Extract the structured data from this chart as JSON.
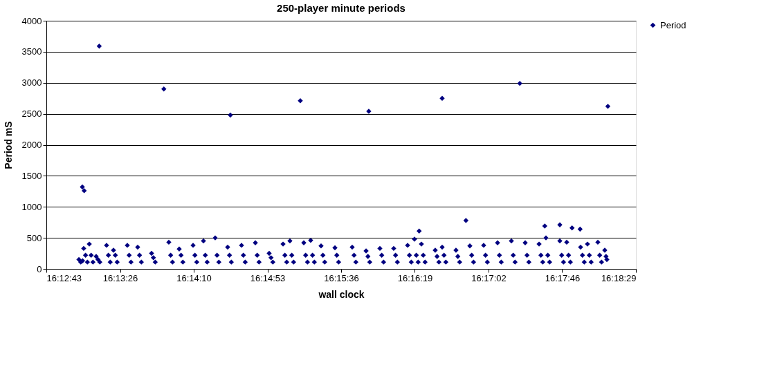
{
  "chart_data": {
    "type": "scatter",
    "title": "250-player minute periods",
    "xlabel": "wall clock",
    "ylabel": "Period mS",
    "xlim": [
      16.212,
      16.308
    ],
    "xticks": [
      {
        "value": 16.212,
        "label": "16:12:43"
      },
      {
        "value": 16.224,
        "label": "16:13:26"
      },
      {
        "value": 16.236,
        "label": "16:14:10"
      },
      {
        "value": 16.248,
        "label": "16:14:53"
      },
      {
        "value": 16.26,
        "label": "16:15:36"
      },
      {
        "value": 16.272,
        "label": "16:16:19"
      },
      {
        "value": 16.284,
        "label": "16:17:02"
      },
      {
        "value": 16.296,
        "label": "16:17:46"
      },
      {
        "value": 16.308,
        "label": "16:18:29"
      }
    ],
    "ylim": [
      0,
      4000
    ],
    "yticks": [
      0,
      500,
      1000,
      1500,
      2000,
      2500,
      3000,
      3500,
      4000
    ],
    "grid": "y",
    "legend": "right",
    "marker": "diamond",
    "x": [
      16.21786,
      16.21816,
      16.22061,
      16.23113,
      16.24196,
      16.25335,
      16.2645,
      16.27645,
      16.28909,
      16.30343,
      16.28032,
      16.29316,
      16.29561,
      16.2976,
      16.29891,
      16.2727,
      16.2173,
      16.2176,
      16.2179,
      16.21808,
      16.21838,
      16.21868,
      16.21899,
      16.21929,
      16.21959,
      16.22011,
      16.22041,
      16.22071,
      16.2218,
      16.2221,
      16.2224,
      16.22293,
      16.22323,
      16.22353,
      16.22518,
      16.22548,
      16.22578,
      16.22687,
      16.22717,
      16.22747,
      16.22913,
      16.22943,
      16.22973,
      16.23194,
      16.23224,
      16.23254,
      16.23363,
      16.23393,
      16.23423,
      16.23589,
      16.23619,
      16.23649,
      16.23758,
      16.23788,
      16.23818,
      16.23949,
      16.23979,
      16.24009,
      16.24152,
      16.24182,
      16.24212,
      16.24378,
      16.24408,
      16.24438,
      16.24603,
      16.24633,
      16.24663,
      16.24828,
      16.24858,
      16.24888,
      16.25054,
      16.25084,
      16.25114,
      16.25166,
      16.25196,
      16.25226,
      16.25392,
      16.25422,
      16.25452,
      16.25504,
      16.25534,
      16.25564,
      16.25673,
      16.25703,
      16.25733,
      16.25899,
      16.25929,
      16.25959,
      16.2618,
      16.2621,
      16.2624,
      16.26406,
      16.26436,
      16.26466,
      16.26631,
      16.26661,
      16.26691,
      16.26856,
      16.26886,
      16.26916,
      16.27082,
      16.27112,
      16.27142,
      16.27194,
      16.27224,
      16.27254,
      16.27307,
      16.27337,
      16.27367,
      16.27532,
      16.27562,
      16.27592,
      16.27645,
      16.27675,
      16.27705,
      16.2787,
      16.279,
      16.2793,
      16.28096,
      16.28126,
      16.28156,
      16.28321,
      16.28351,
      16.28381,
      16.28547,
      16.28577,
      16.28607,
      16.28772,
      16.28802,
      16.28832,
      16.28997,
      16.29027,
      16.29057,
      16.29223,
      16.29253,
      16.29283,
      16.29335,
      16.29365,
      16.29395,
      16.29561,
      16.29591,
      16.29621,
      16.29673,
      16.29703,
      16.29733,
      16.29899,
      16.29929,
      16.29959,
      16.30011,
      16.30041,
      16.30071,
      16.3018,
      16.3021,
      16.3024,
      16.30293,
      16.30313,
      16.30327
    ],
    "series": [
      {
        "name": "Period",
        "color": "#000080",
        "values": [
          1320,
          1260,
          3590,
          2900,
          2480,
          2710,
          2540,
          2750,
          2990,
          2620,
          780,
          690,
          710,
          660,
          640,
          610,
          150,
          110,
          130,
          330,
          220,
          110,
          400,
          220,
          110,
          200,
          150,
          110,
          380,
          220,
          110,
          300,
          220,
          110,
          380,
          220,
          110,
          350,
          220,
          110,
          250,
          180,
          110,
          430,
          220,
          110,
          320,
          220,
          110,
          380,
          220,
          110,
          450,
          220,
          110,
          500,
          220,
          110,
          350,
          220,
          110,
          380,
          220,
          110,
          420,
          220,
          110,
          250,
          180,
          110,
          400,
          220,
          110,
          450,
          220,
          110,
          420,
          220,
          110,
          460,
          220,
          110,
          370,
          220,
          110,
          340,
          220,
          110,
          350,
          220,
          110,
          290,
          200,
          110,
          330,
          220,
          110,
          330,
          220,
          110,
          380,
          220,
          110,
          480,
          220,
          110,
          400,
          220,
          110,
          300,
          200,
          110,
          350,
          220,
          110,
          300,
          200,
          110,
          370,
          220,
          110,
          380,
          220,
          110,
          420,
          220,
          110,
          450,
          220,
          110,
          420,
          220,
          110,
          400,
          220,
          110,
          500,
          220,
          110,
          450,
          220,
          110,
          430,
          220,
          110,
          350,
          220,
          110,
          400,
          220,
          110,
          430,
          220,
          110,
          300,
          200,
          150
        ]
      }
    ]
  }
}
